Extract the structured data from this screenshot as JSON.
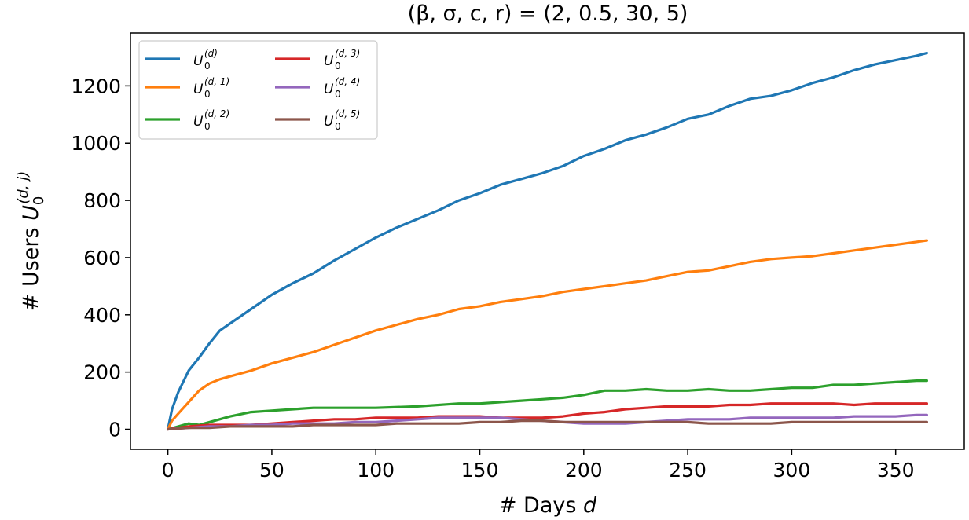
{
  "chart_data": {
    "type": "line",
    "title": "(β, σ, c, r) =  (2, 0.5, 30, 5)",
    "xlabel": "# Days d",
    "ylabel": "# Users U0(d,j)",
    "xlim": [
      -18,
      383
    ],
    "ylim": [
      -70,
      1385
    ],
    "xticks": [
      0,
      50,
      100,
      150,
      200,
      250,
      300,
      350
    ],
    "yticks": [
      0,
      200,
      400,
      600,
      800,
      1000,
      1200
    ],
    "grid": false,
    "legend": {
      "placement": "top-left",
      "columns": 2
    },
    "series": [
      {
        "name": "U0(d)",
        "base": "U",
        "sub": "0",
        "sup": "(d)",
        "color": "#1f77b4",
        "x": [
          0,
          2,
          5,
          10,
          15,
          20,
          25,
          30,
          40,
          50,
          60,
          70,
          80,
          90,
          100,
          110,
          120,
          130,
          140,
          150,
          160,
          170,
          180,
          190,
          200,
          210,
          220,
          230,
          240,
          250,
          260,
          270,
          280,
          290,
          300,
          310,
          320,
          330,
          340,
          350,
          360,
          365
        ],
        "y": [
          0,
          70,
          130,
          205,
          250,
          300,
          345,
          370,
          420,
          470,
          510,
          545,
          590,
          630,
          670,
          705,
          735,
          765,
          800,
          825,
          855,
          875,
          895,
          920,
          955,
          980,
          1010,
          1030,
          1055,
          1085,
          1100,
          1130,
          1155,
          1165,
          1185,
          1210,
          1230,
          1255,
          1275,
          1290,
          1305,
          1315
        ]
      },
      {
        "name": "U0(d,1)",
        "base": "U",
        "sub": "0",
        "sup": "(d, 1)",
        "color": "#ff7f0e",
        "x": [
          0,
          2,
          5,
          10,
          15,
          20,
          25,
          30,
          40,
          50,
          60,
          70,
          80,
          90,
          100,
          110,
          120,
          130,
          140,
          150,
          160,
          170,
          180,
          190,
          200,
          210,
          220,
          230,
          240,
          250,
          260,
          270,
          280,
          290,
          300,
          310,
          320,
          330,
          340,
          350,
          360,
          365
        ],
        "y": [
          0,
          30,
          55,
          95,
          135,
          160,
          175,
          185,
          205,
          230,
          250,
          270,
          295,
          320,
          345,
          365,
          385,
          400,
          420,
          430,
          445,
          455,
          465,
          480,
          490,
          500,
          510,
          520,
          535,
          550,
          555,
          570,
          585,
          595,
          600,
          605,
          615,
          625,
          635,
          645,
          655,
          660
        ]
      },
      {
        "name": "U0(d,2)",
        "base": "U",
        "sub": "0",
        "sup": "(d, 2)",
        "color": "#2ca02c",
        "x": [
          0,
          5,
          10,
          15,
          20,
          30,
          40,
          50,
          60,
          70,
          80,
          90,
          100,
          120,
          140,
          150,
          160,
          170,
          180,
          190,
          200,
          210,
          220,
          230,
          240,
          250,
          260,
          270,
          280,
          290,
          300,
          310,
          320,
          330,
          340,
          350,
          360,
          365
        ],
        "y": [
          0,
          10,
          20,
          15,
          25,
          45,
          60,
          65,
          70,
          75,
          75,
          75,
          75,
          80,
          90,
          90,
          95,
          100,
          105,
          110,
          120,
          135,
          135,
          140,
          135,
          135,
          140,
          135,
          135,
          140,
          145,
          145,
          155,
          155,
          160,
          165,
          170,
          170
        ]
      },
      {
        "name": "U0(d,3)",
        "base": "U",
        "sub": "0",
        "sup": "(d, 3)",
        "color": "#d62728",
        "x": [
          0,
          10,
          20,
          30,
          40,
          50,
          60,
          70,
          80,
          90,
          100,
          110,
          120,
          130,
          140,
          150,
          160,
          170,
          180,
          190,
          200,
          210,
          220,
          230,
          240,
          250,
          260,
          270,
          280,
          290,
          300,
          310,
          320,
          330,
          340,
          350,
          360,
          365
        ],
        "y": [
          0,
          10,
          15,
          15,
          15,
          20,
          25,
          30,
          35,
          35,
          40,
          40,
          40,
          45,
          45,
          45,
          40,
          40,
          40,
          45,
          55,
          60,
          70,
          75,
          80,
          80,
          80,
          85,
          85,
          90,
          90,
          90,
          90,
          85,
          90,
          90,
          90,
          90
        ]
      },
      {
        "name": "U0(d,4)",
        "base": "U",
        "sub": "0",
        "sup": "(d, 4)",
        "color": "#9467bd",
        "x": [
          0,
          10,
          20,
          30,
          40,
          50,
          60,
          70,
          80,
          90,
          100,
          110,
          120,
          130,
          140,
          150,
          160,
          170,
          180,
          190,
          200,
          210,
          220,
          230,
          240,
          250,
          260,
          270,
          280,
          290,
          300,
          310,
          320,
          330,
          340,
          350,
          360,
          365
        ],
        "y": [
          0,
          5,
          10,
          10,
          15,
          15,
          20,
          20,
          20,
          25,
          25,
          30,
          35,
          40,
          40,
          40,
          40,
          35,
          30,
          25,
          20,
          20,
          20,
          25,
          30,
          35,
          35,
          35,
          40,
          40,
          40,
          40,
          40,
          45,
          45,
          45,
          50,
          50
        ]
      },
      {
        "name": "U0(d,5)",
        "base": "U",
        "sub": "0",
        "sup": "(d, 5)",
        "color": "#8c564b",
        "x": [
          0,
          10,
          20,
          30,
          40,
          50,
          60,
          70,
          80,
          90,
          100,
          110,
          120,
          130,
          140,
          150,
          160,
          170,
          180,
          190,
          200,
          210,
          220,
          230,
          240,
          250,
          260,
          270,
          280,
          290,
          300,
          310,
          320,
          330,
          340,
          350,
          360,
          365
        ],
        "y": [
          0,
          5,
          5,
          10,
          10,
          10,
          10,
          15,
          15,
          15,
          15,
          20,
          20,
          20,
          20,
          25,
          25,
          30,
          30,
          25,
          25,
          25,
          25,
          25,
          25,
          25,
          20,
          20,
          20,
          20,
          25,
          25,
          25,
          25,
          25,
          25,
          25,
          25
        ]
      }
    ]
  }
}
